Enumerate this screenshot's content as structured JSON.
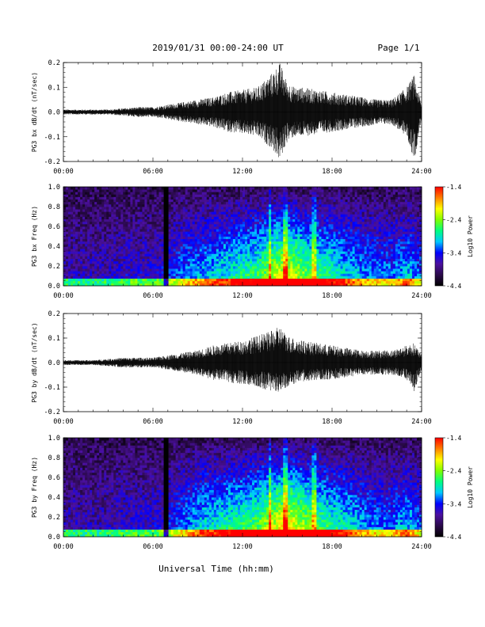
{
  "header": {
    "title": "2019/01/31  00:00-24:00 UT",
    "page": "Page 1/1"
  },
  "footer": {
    "xlabel": "Universal Time (hh:mm)"
  },
  "colors": {
    "trace": "#000000",
    "colorbar_stops": [
      "#000000",
      "#2a0a4a",
      "#4b10a0",
      "#0000ff",
      "#00c8ff",
      "#00ff80",
      "#80ff00",
      "#ffff00",
      "#ff8000",
      "#ff0000"
    ]
  },
  "chart_data": [
    {
      "type": "line",
      "title": "",
      "ylabel": "PG3 bx dB/dt (nT/sec)",
      "xlabel": "",
      "x_ticks": [
        "00:00",
        "06:00",
        "12:00",
        "18:00",
        "24:00"
      ],
      "y_ticks": [
        "0.2",
        "0.1",
        "0.0",
        "-0.1",
        "-0.2"
      ],
      "xlim": [
        0,
        24
      ],
      "ylim": [
        -0.2,
        0.2
      ],
      "series": [
        {
          "x": [
            0,
            1,
            2,
            3,
            4,
            5,
            6,
            7,
            8,
            9,
            10,
            11,
            12,
            13,
            14,
            14.5,
            15,
            15.5,
            16,
            17,
            18,
            19,
            20,
            21,
            22,
            23,
            23.5,
            24
          ],
          "y_max": [
            0.01,
            0.01,
            0.01,
            0.01,
            0.015,
            0.02,
            0.02,
            0.03,
            0.04,
            0.05,
            0.06,
            0.08,
            0.09,
            0.1,
            0.16,
            0.2,
            0.12,
            0.1,
            0.1,
            0.09,
            0.08,
            0.07,
            0.06,
            0.05,
            0.05,
            0.1,
            0.15,
            0.03
          ],
          "y_min": [
            -0.01,
            -0.01,
            -0.01,
            -0.01,
            -0.015,
            -0.02,
            -0.02,
            -0.03,
            -0.04,
            -0.05,
            -0.06,
            -0.08,
            -0.09,
            -0.1,
            -0.15,
            -0.2,
            -0.12,
            -0.1,
            -0.1,
            -0.09,
            -0.08,
            -0.07,
            -0.06,
            -0.05,
            -0.05,
            -0.1,
            -0.2,
            -0.03
          ]
        }
      ]
    },
    {
      "type": "heatmap",
      "title": "",
      "ylabel": "PG3 bx Freq (Hz)",
      "xlabel": "",
      "x_ticks": [
        "00:00",
        "06:00",
        "12:00",
        "18:00",
        "24:00"
      ],
      "y_ticks": [
        "1.0",
        "0.8",
        "0.6",
        "0.4",
        "0.2",
        "0.0"
      ],
      "xlim": [
        0,
        24
      ],
      "ylim": [
        0,
        1.0
      ],
      "colorbar": {
        "label": "Log10 Power",
        "ticks": [
          "-1.4",
          "-2.4",
          "-3.4",
          "-4.4"
        ],
        "range": [
          -4.4,
          -1.4
        ]
      },
      "activity_hours": [
        0,
        1,
        2,
        3,
        4,
        5,
        6,
        7,
        8,
        9,
        10,
        11,
        12,
        13,
        14,
        15,
        16,
        17,
        18,
        19,
        20,
        21,
        22,
        23,
        24
      ],
      "activity_level": [
        0.15,
        0.15,
        0.15,
        0.15,
        0.2,
        0.2,
        0.2,
        0.25,
        0.35,
        0.4,
        0.45,
        0.5,
        0.55,
        0.6,
        0.75,
        0.85,
        0.7,
        0.6,
        0.55,
        0.45,
        0.4,
        0.35,
        0.35,
        0.45,
        0.3
      ]
    },
    {
      "type": "line",
      "title": "",
      "ylabel": "PG3 by dB/dt (nT/sec)",
      "xlabel": "",
      "x_ticks": [
        "00:00",
        "06:00",
        "12:00",
        "18:00",
        "24:00"
      ],
      "y_ticks": [
        "0.2",
        "0.1",
        "0.0",
        "-0.1",
        "-0.2"
      ],
      "xlim": [
        0,
        24
      ],
      "ylim": [
        -0.2,
        0.2
      ],
      "series": [
        {
          "x": [
            0,
            1,
            2,
            3,
            4,
            5,
            6,
            7,
            8,
            9,
            10,
            11,
            12,
            13,
            14,
            14.5,
            15,
            15.5,
            16,
            17,
            18,
            19,
            20,
            21,
            22,
            23,
            23.5,
            24
          ],
          "y_max": [
            0.01,
            0.01,
            0.01,
            0.015,
            0.02,
            0.02,
            0.02,
            0.03,
            0.04,
            0.05,
            0.07,
            0.08,
            0.09,
            0.11,
            0.13,
            0.15,
            0.11,
            0.1,
            0.09,
            0.08,
            0.07,
            0.06,
            0.05,
            0.05,
            0.05,
            0.07,
            0.08,
            0.03
          ],
          "y_min": [
            -0.01,
            -0.01,
            -0.01,
            -0.015,
            -0.02,
            -0.02,
            -0.02,
            -0.03,
            -0.04,
            -0.05,
            -0.07,
            -0.08,
            -0.09,
            -0.1,
            -0.12,
            -0.12,
            -0.1,
            -0.09,
            -0.08,
            -0.07,
            -0.07,
            -0.06,
            -0.05,
            -0.05,
            -0.05,
            -0.07,
            -0.12,
            -0.03
          ]
        }
      ]
    },
    {
      "type": "heatmap",
      "title": "",
      "ylabel": "PG3 by Freq (Hz)",
      "xlabel": "",
      "x_ticks": [
        "00:00",
        "06:00",
        "12:00",
        "18:00",
        "24:00"
      ],
      "y_ticks": [
        "1.0",
        "0.8",
        "0.6",
        "0.4",
        "0.2",
        "0.0"
      ],
      "xlim": [
        0,
        24
      ],
      "ylim": [
        0,
        1.0
      ],
      "colorbar": {
        "label": "Log10 Power",
        "ticks": [
          "-1.4",
          "-2.4",
          "-3.4",
          "-4.4"
        ],
        "range": [
          -4.4,
          -1.4
        ]
      },
      "activity_hours": [
        0,
        1,
        2,
        3,
        4,
        5,
        6,
        7,
        8,
        9,
        10,
        11,
        12,
        13,
        14,
        15,
        16,
        17,
        18,
        19,
        20,
        21,
        22,
        23,
        24
      ],
      "activity_level": [
        0.15,
        0.15,
        0.15,
        0.15,
        0.2,
        0.2,
        0.2,
        0.25,
        0.35,
        0.45,
        0.5,
        0.55,
        0.6,
        0.65,
        0.8,
        0.9,
        0.75,
        0.65,
        0.55,
        0.5,
        0.4,
        0.35,
        0.35,
        0.45,
        0.3
      ]
    }
  ]
}
